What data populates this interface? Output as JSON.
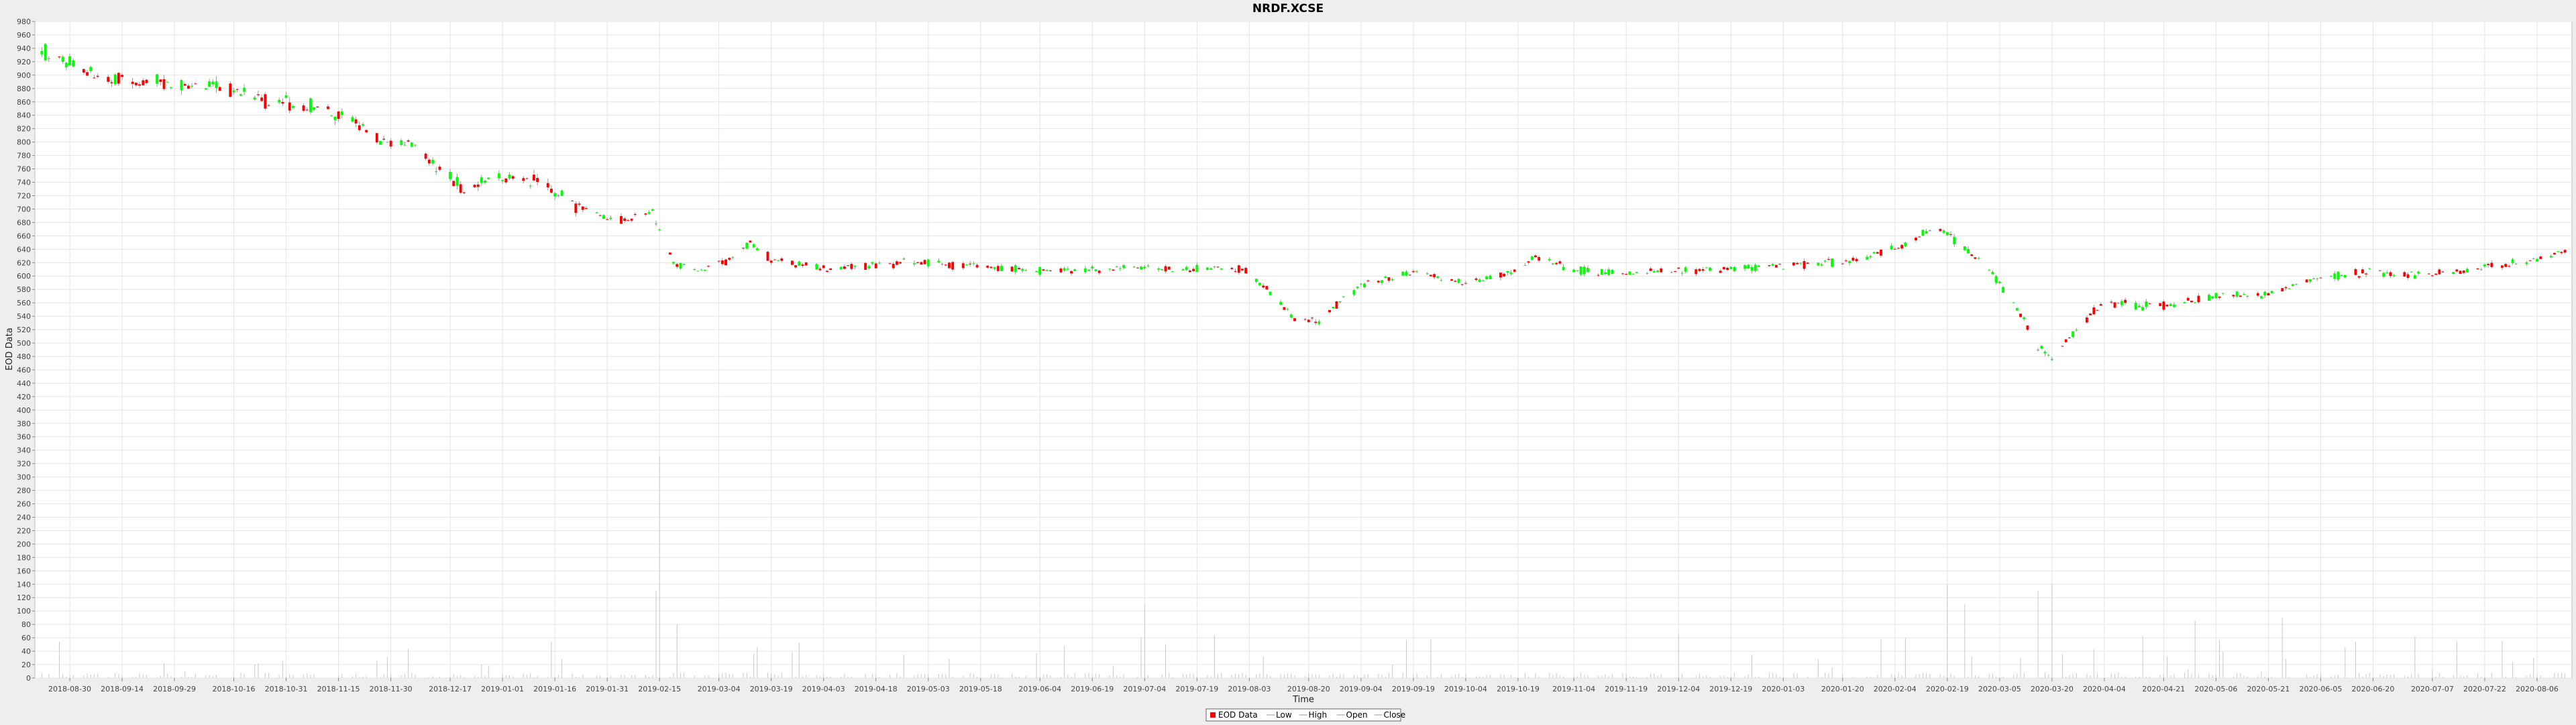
{
  "chart_data": {
    "type": "candlestick",
    "title": "NRDF.XCSE",
    "xlabel": "Time",
    "ylabel": "EOD Data",
    "ylim": [
      0,
      980
    ],
    "yticks": [
      0,
      20,
      40,
      60,
      80,
      100,
      120,
      140,
      160,
      180,
      200,
      220,
      240,
      260,
      280,
      300,
      320,
      340,
      360,
      380,
      400,
      420,
      440,
      460,
      480,
      500,
      520,
      540,
      560,
      580,
      600,
      620,
      640,
      660,
      680,
      700,
      720,
      740,
      760,
      780,
      800,
      820,
      840,
      860,
      880,
      900,
      920,
      940,
      960,
      980
    ],
    "xlim": [
      "2018-08-20",
      "2020-08-16"
    ],
    "xticks": [
      "2018-08-30",
      "2018-09-14",
      "2018-09-29",
      "2018-10-16",
      "2018-10-31",
      "2018-11-15",
      "2018-11-30",
      "2018-12-17",
      "2019-01-01",
      "2019-01-16",
      "2019-01-31",
      "2019-02-15",
      "2019-03-04",
      "2019-03-19",
      "2019-04-03",
      "2019-04-18",
      "2019-05-03",
      "2019-05-18",
      "2019-06-04",
      "2019-06-19",
      "2019-07-04",
      "2019-07-19",
      "2019-08-03",
      "2019-08-20",
      "2019-09-04",
      "2019-09-19",
      "2019-10-04",
      "2019-10-19",
      "2019-11-04",
      "2019-11-19",
      "2019-12-04",
      "2019-12-19",
      "2020-01-03",
      "2020-01-20",
      "2020-02-04",
      "2020-02-19",
      "2020-03-05",
      "2020-03-20",
      "2020-04-04",
      "2020-04-21",
      "2020-05-06",
      "2020-05-21",
      "2020-06-05",
      "2020-06-20",
      "2020-07-07",
      "2020-07-22",
      "2020-08-06"
    ],
    "grid": true,
    "legend_position": "bottom",
    "legend": [
      "EOD Data",
      "Low",
      "High",
      "Open",
      "Close"
    ],
    "colors": {
      "up": "#00ff00",
      "down": "#ff0000",
      "wick": "#9a9a9a",
      "volume": "#c8c8c8",
      "grid": "#e4e4e4"
    },
    "price_anchors": [
      [
        "2018-08-22",
        935
      ],
      [
        "2018-08-28",
        925
      ],
      [
        "2018-09-04",
        905
      ],
      [
        "2018-09-12",
        893
      ],
      [
        "2018-09-25",
        888
      ],
      [
        "2018-10-08",
        882
      ],
      [
        "2018-10-17",
        878
      ],
      [
        "2018-10-26",
        858
      ],
      [
        "2018-11-09",
        852
      ],
      [
        "2018-11-20",
        830
      ],
      [
        "2018-11-28",
        795
      ],
      [
        "2018-12-07",
        800
      ],
      [
        "2018-12-12",
        770
      ],
      [
        "2018-12-21",
        730
      ],
      [
        "2018-12-28",
        745
      ],
      [
        "2019-01-04",
        748
      ],
      [
        "2019-01-14",
        735
      ],
      [
        "2019-01-22",
        705
      ],
      [
        "2019-01-29",
        690
      ],
      [
        "2019-02-06",
        682
      ],
      [
        "2019-02-13",
        695
      ],
      [
        "2019-02-19",
        620
      ],
      [
        "2019-02-26",
        610
      ],
      [
        "2019-03-07",
        622
      ],
      [
        "2019-03-13",
        650
      ],
      [
        "2019-03-19",
        625
      ],
      [
        "2019-04-03",
        612
      ],
      [
        "2019-05-03",
        620
      ],
      [
        "2019-06-04",
        607
      ],
      [
        "2019-07-04",
        612
      ],
      [
        "2019-08-01",
        610
      ],
      [
        "2019-08-09",
        578
      ],
      [
        "2019-08-16",
        535
      ],
      [
        "2019-08-23",
        530
      ],
      [
        "2019-08-30",
        568
      ],
      [
        "2019-09-06",
        590
      ],
      [
        "2019-09-19",
        605
      ],
      [
        "2019-10-04",
        590
      ],
      [
        "2019-10-17",
        607
      ],
      [
        "2019-10-24",
        630
      ],
      [
        "2019-11-04",
        608
      ],
      [
        "2019-11-19",
        605
      ],
      [
        "2019-12-04",
        608
      ],
      [
        "2019-12-19",
        612
      ],
      [
        "2020-01-03",
        615
      ],
      [
        "2020-01-20",
        622
      ],
      [
        "2020-02-04",
        640
      ],
      [
        "2020-02-12",
        662
      ],
      [
        "2020-02-17",
        672
      ],
      [
        "2020-02-24",
        640
      ],
      [
        "2020-03-02",
        610
      ],
      [
        "2020-03-09",
        560
      ],
      [
        "2020-03-16",
        495
      ],
      [
        "2020-03-20",
        482
      ],
      [
        "2020-03-27",
        520
      ],
      [
        "2020-04-03",
        560
      ],
      [
        "2020-04-21",
        555
      ],
      [
        "2020-05-06",
        568
      ],
      [
        "2020-05-21",
        572
      ],
      [
        "2020-06-05",
        600
      ],
      [
        "2020-06-20",
        605
      ],
      [
        "2020-07-07",
        602
      ],
      [
        "2020-07-22",
        612
      ],
      [
        "2020-08-06",
        625
      ],
      [
        "2020-08-14",
        638
      ]
    ],
    "volume_spikes": [
      [
        "2019-02-15",
        330
      ],
      [
        "2019-02-14",
        130
      ],
      [
        "2019-02-20",
        80
      ],
      [
        "2019-07-04",
        110
      ],
      [
        "2020-02-19",
        140
      ],
      [
        "2020-02-24",
        110
      ],
      [
        "2020-03-16",
        130
      ],
      [
        "2020-03-20",
        140
      ],
      [
        "2020-05-24",
        90
      ],
      [
        "2020-05-25",
        90
      ],
      [
        "2020-04-30",
        85
      ]
    ]
  }
}
